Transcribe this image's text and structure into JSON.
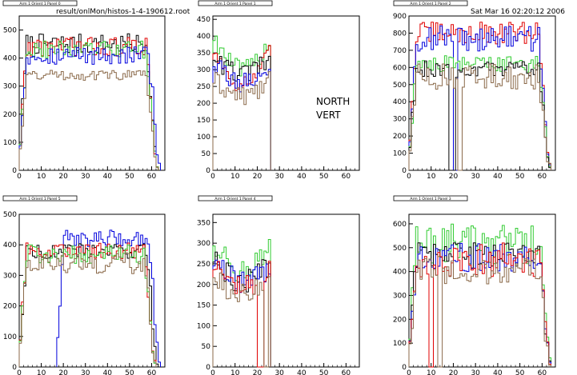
{
  "header": {
    "file_label": "result/onlMon/histos-1-4-190612.root",
    "date_label": "Sat Mar 16 02:20:12 2006"
  },
  "annotation": {
    "line1": "NORTH",
    "line2": "VERT"
  },
  "colors": {
    "black": "#000000",
    "red": "#e00000",
    "green": "#33cc33",
    "blue": "#0000dd",
    "brown": "#8b6a4a"
  },
  "chart_data": [
    {
      "type": "histogram",
      "title": "Arm 1 Orient 1 Panel 0",
      "xlim": [
        0,
        66
      ],
      "ylim": [
        0,
        550
      ],
      "xticks": [
        0,
        10,
        20,
        30,
        40,
        50,
        60
      ],
      "yticks": [
        0,
        100,
        200,
        300,
        400,
        500
      ],
      "bin_range": [
        0,
        64
      ],
      "series": [
        {
          "color": "black",
          "shape": "flat",
          "level": 450,
          "x_start": 0,
          "x_end": 63,
          "min": 320,
          "max": 530
        },
        {
          "color": "red",
          "shape": "flat",
          "level": 440,
          "x_start": 0,
          "x_end": 63,
          "min": 330,
          "max": 530
        },
        {
          "color": "green",
          "shape": "flat",
          "level": 430,
          "x_start": 0,
          "x_end": 63,
          "min": 340,
          "max": 520
        },
        {
          "color": "blue",
          "shape": "flat",
          "level": 410,
          "x_start": 0,
          "x_end": 64,
          "min": 310,
          "max": 500
        },
        {
          "color": "brown",
          "shape": "flat",
          "level": 340,
          "x_start": 0,
          "x_end": 63,
          "min": 280,
          "max": 390
        }
      ]
    },
    {
      "type": "histogram",
      "title": "Arm 1 Orient 1 Panel 1",
      "xlim": [
        0,
        66
      ],
      "ylim": [
        0,
        460
      ],
      "xticks": [
        0,
        10,
        20,
        30,
        40,
        50,
        60
      ],
      "yticks": [
        0,
        50,
        100,
        150,
        200,
        250,
        300,
        350,
        400,
        450
      ],
      "bin_range": [
        0,
        26
      ],
      "series": [
        {
          "color": "green",
          "shape": "dip",
          "level": 400,
          "x_start": 0,
          "x_end": 26,
          "min": 230,
          "max": 440
        },
        {
          "color": "red",
          "shape": "dip",
          "level": 360,
          "x_start": 0,
          "x_end": 26,
          "min": 190,
          "max": 390
        },
        {
          "color": "black",
          "shape": "dip",
          "level": 340,
          "x_start": 0,
          "x_end": 26,
          "min": 250,
          "max": 370
        },
        {
          "color": "blue",
          "shape": "dip",
          "level": 320,
          "x_start": 0,
          "x_end": 26,
          "min": 220,
          "max": 360
        },
        {
          "color": "brown",
          "shape": "dip",
          "level": 270,
          "x_start": 0,
          "x_end": 26,
          "min": 190,
          "max": 300
        }
      ]
    },
    {
      "type": "histogram",
      "title": "Arm 1 Orient 1 Panel 2",
      "xlim": [
        0,
        66
      ],
      "ylim": [
        0,
        900
      ],
      "xticks": [
        0,
        10,
        20,
        30,
        40,
        50,
        60
      ],
      "yticks": [
        0,
        100,
        200,
        300,
        400,
        500,
        600,
        700,
        800,
        900
      ],
      "bin_range": [
        0,
        64
      ],
      "series": [
        {
          "color": "red",
          "shape": "flat",
          "level": 800,
          "x_start": 0,
          "x_end": 64,
          "min": 500,
          "max": 870
        },
        {
          "color": "blue",
          "shape": "flat",
          "level": 770,
          "x_start": 0,
          "x_end": 64,
          "min": 420,
          "max": 850,
          "gap": [
            20,
            21
          ]
        },
        {
          "color": "green",
          "shape": "flat",
          "level": 620,
          "x_start": 0,
          "x_end": 64,
          "min": 440,
          "max": 720
        },
        {
          "color": "black",
          "shape": "flat",
          "level": 590,
          "x_start": 0,
          "x_end": 64,
          "min": 400,
          "max": 680,
          "gap": [
            18,
            20
          ]
        },
        {
          "color": "brown",
          "shape": "flat",
          "level": 540,
          "x_start": 0,
          "x_end": 64,
          "min": 150,
          "max": 620,
          "gap": [
            22,
            23
          ]
        }
      ]
    },
    {
      "type": "histogram",
      "title": "Arm 1 Orient 1 Panel 5",
      "xlim": [
        0,
        66
      ],
      "ylim": [
        0,
        500
      ],
      "xticks": [
        0,
        10,
        20,
        30,
        40,
        50,
        60
      ],
      "yticks": [
        0,
        100,
        200,
        300,
        400,
        500
      ],
      "bin_range": [
        0,
        64
      ],
      "series": [
        {
          "color": "blue",
          "shape": "flat",
          "level": 420,
          "x_start": 17,
          "x_end": 64,
          "min": 330,
          "max": 490
        },
        {
          "color": "black",
          "shape": "flat",
          "level": 380,
          "x_start": 0,
          "x_end": 63,
          "min": 300,
          "max": 440
        },
        {
          "color": "red",
          "shape": "flat",
          "level": 380,
          "x_start": 0,
          "x_end": 62,
          "min": 280,
          "max": 430
        },
        {
          "color": "green",
          "shape": "flat",
          "level": 370,
          "x_start": 0,
          "x_end": 62,
          "min": 250,
          "max": 430
        },
        {
          "color": "brown",
          "shape": "flat",
          "level": 340,
          "x_start": 0,
          "x_end": 62,
          "min": 200,
          "max": 400
        }
      ]
    },
    {
      "type": "histogram",
      "title": "Arm 1 Orient 1 Panel 4",
      "xlim": [
        0,
        66
      ],
      "ylim": [
        0,
        370
      ],
      "xticks": [
        0,
        10,
        20,
        30,
        40,
        50,
        60
      ],
      "yticks": [
        0,
        50,
        100,
        150,
        200,
        250,
        300,
        350
      ],
      "bin_range": [
        0,
        26
      ],
      "series": [
        {
          "color": "green",
          "shape": "dip",
          "level": 300,
          "x_start": 0,
          "x_end": 26,
          "min": 190,
          "max": 360
        },
        {
          "color": "black",
          "shape": "dip",
          "level": 260,
          "x_start": 0,
          "x_end": 26,
          "min": 170,
          "max": 290
        },
        {
          "color": "blue",
          "shape": "dip",
          "level": 250,
          "x_start": 0,
          "x_end": 26,
          "min": 180,
          "max": 280
        },
        {
          "color": "red",
          "shape": "dip",
          "level": 240,
          "x_start": 0,
          "x_end": 26,
          "min": 160,
          "max": 280,
          "gap": [
            20,
            22
          ]
        },
        {
          "color": "brown",
          "shape": "dip",
          "level": 220,
          "x_start": 0,
          "x_end": 26,
          "min": 150,
          "max": 250,
          "gap": [
            23,
            24
          ]
        }
      ]
    },
    {
      "type": "histogram",
      "title": "Arm 1 Orient 1 Panel 3",
      "xlim": [
        0,
        66
      ],
      "ylim": [
        0,
        640
      ],
      "xticks": [
        0,
        10,
        20,
        30,
        40,
        50,
        60
      ],
      "yticks": [
        0,
        100,
        200,
        300,
        400,
        500,
        600
      ],
      "bin_range": [
        0,
        64
      ],
      "series": [
        {
          "color": "green",
          "shape": "flat",
          "level": 520,
          "x_start": 0,
          "x_end": 64,
          "min": 100,
          "max": 610
        },
        {
          "color": "black",
          "shape": "flat",
          "level": 470,
          "x_start": 0,
          "x_end": 64,
          "min": 200,
          "max": 520
        },
        {
          "color": "blue",
          "shape": "flat",
          "level": 460,
          "x_start": 0,
          "x_end": 64,
          "min": 180,
          "max": 530
        },
        {
          "color": "red",
          "shape": "flat",
          "level": 450,
          "x_start": 0,
          "x_end": 64,
          "min": 80,
          "max": 520,
          "gap": [
            9,
            10
          ]
        },
        {
          "color": "brown",
          "shape": "flat",
          "level": 400,
          "x_start": 0,
          "x_end": 64,
          "min": 140,
          "max": 460,
          "gap": [
            13,
            14
          ]
        }
      ]
    }
  ]
}
